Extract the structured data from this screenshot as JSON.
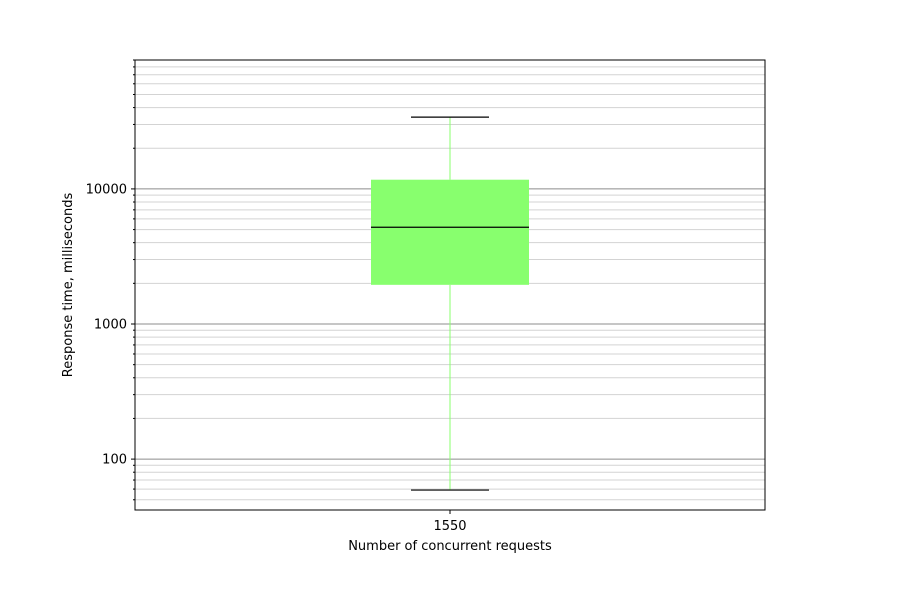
{
  "chart_data": {
    "type": "box",
    "title": "",
    "xlabel": "Number of concurrent requests",
    "ylabel": "Response time, milliseconds",
    "y_scale": "log",
    "ylim": [
      42,
      90000
    ],
    "categories": [
      "1550"
    ],
    "boxes": [
      {
        "category": "1550",
        "whisker_low": 59,
        "q1": 1950,
        "median": 5200,
        "q3": 11700,
        "whisker_high": 34000
      }
    ],
    "y_major_ticks": [
      100,
      1000,
      10000
    ],
    "y_major_tick_labels": [
      "100",
      "1000",
      "10000"
    ],
    "grid": "both-major-and-minor",
    "colors": {
      "box_fill": "#88ff6e",
      "whisker": "#88ff6e",
      "median": "#000000",
      "cap": "#000000",
      "major_grid": "#8c8c8c",
      "minor_grid": "#d3d3d3"
    }
  }
}
